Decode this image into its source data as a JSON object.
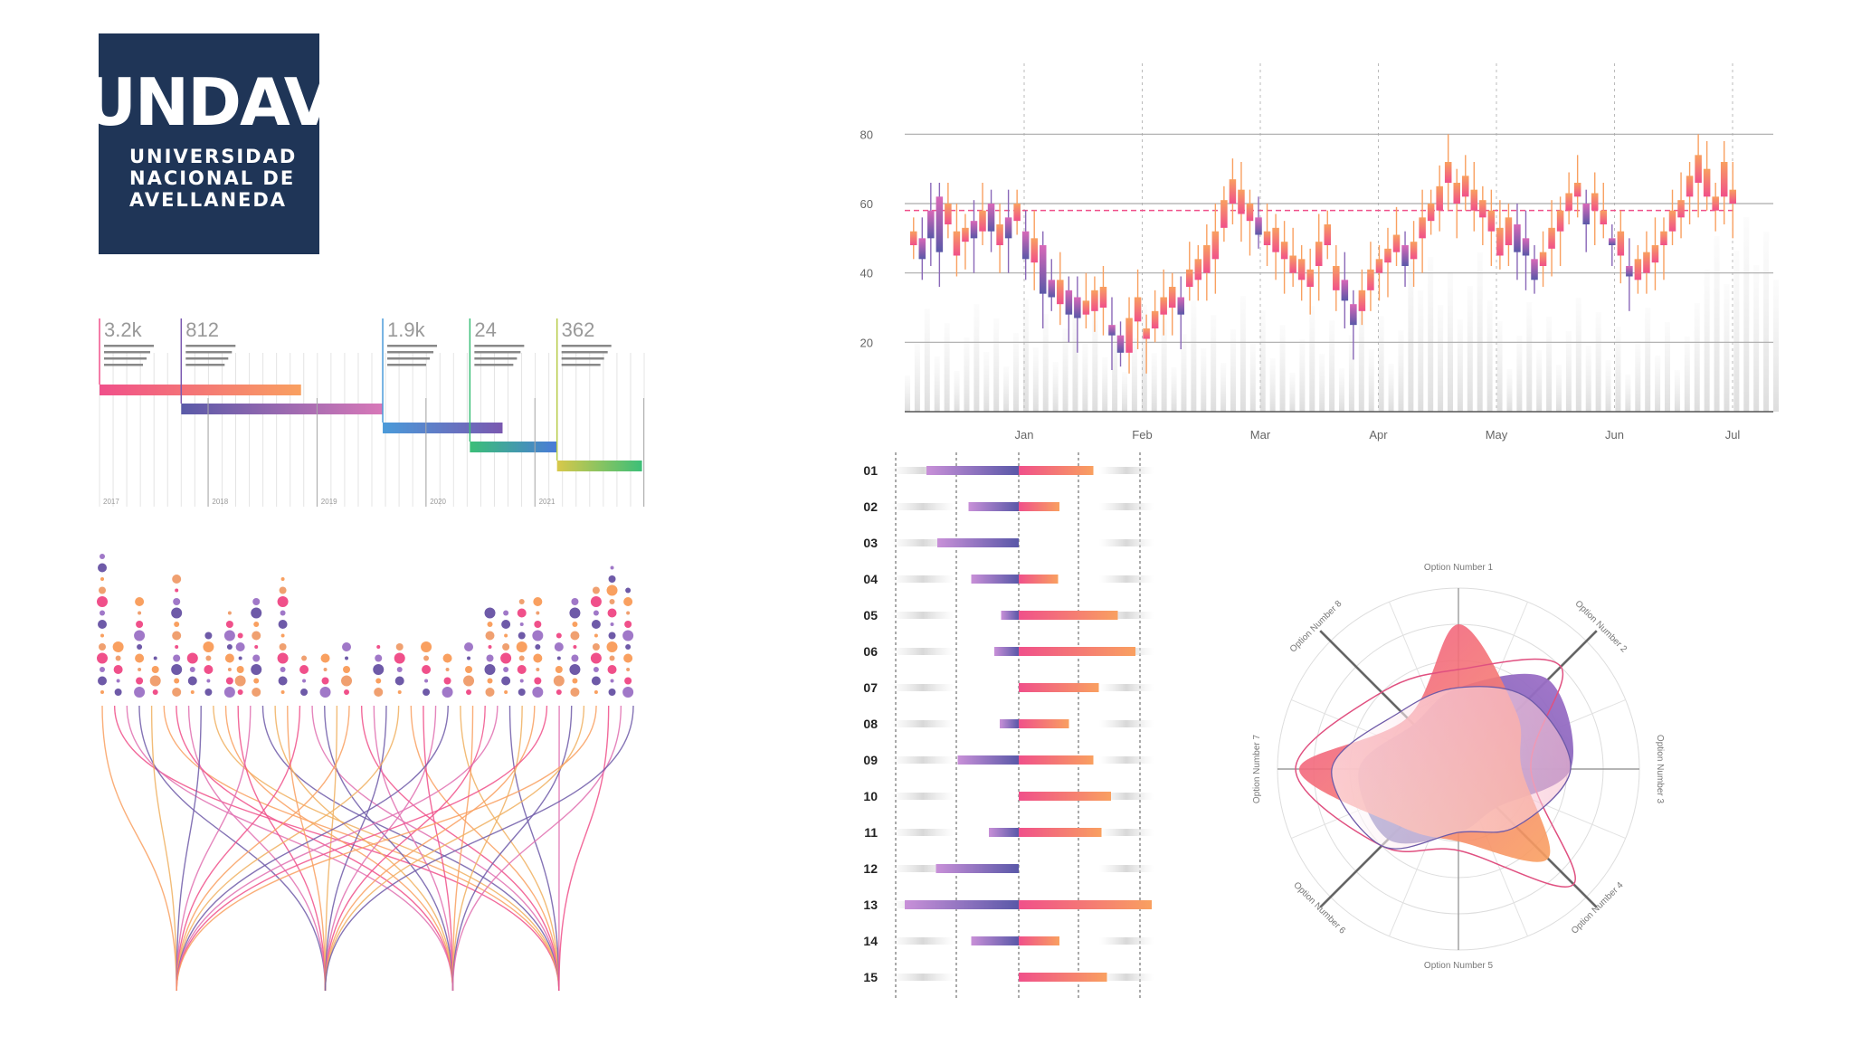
{
  "colors": {
    "navy": "#1f3557",
    "pink": "#f0508a",
    "orange": "#f9a060",
    "purple": "#6e5aa8",
    "blue": "#4a90d9",
    "green": "#3cbf78",
    "yellow": "#d8d84a",
    "grid": "#cccccc",
    "text": "#333333"
  },
  "logo": {
    "mark": "UNDAV",
    "line1": "UNIVERSIDAD",
    "line2": "NACIONAL DE",
    "line3": "AVELLANEDA"
  },
  "chart_data": [
    {
      "type": "bar",
      "subtype": "timeline-gantt",
      "title": "",
      "milestones": [
        {
          "value": "3.2k"
        },
        {
          "value": "812"
        },
        {
          "value": "1.9k"
        },
        {
          "value": "24"
        },
        {
          "value": "362"
        }
      ],
      "x_ticks": [
        "2017",
        "2018",
        "2019",
        "2020",
        "2021"
      ],
      "bars": [
        {
          "start": 2017.0,
          "end": 2018.85
        },
        {
          "start": 2017.75,
          "end": 2019.6
        },
        {
          "start": 2019.6,
          "end": 2020.7
        },
        {
          "start": 2020.4,
          "end": 2021.2
        },
        {
          "start": 2021.2,
          "end": 2021.98
        }
      ],
      "x_range": [
        2017.0,
        2022.0
      ]
    },
    {
      "type": "scatter",
      "subtype": "dot-columns-with-flow",
      "columns": [
        {
          "x": 0.0,
          "dots": 13
        },
        {
          "x": 0.03,
          "dots": 5
        },
        {
          "x": 0.07,
          "dots": 9
        },
        {
          "x": 0.1,
          "dots": 4
        },
        {
          "x": 0.14,
          "dots": 11
        },
        {
          "x": 0.17,
          "dots": 4
        },
        {
          "x": 0.2,
          "dots": 6
        },
        {
          "x": 0.24,
          "dots": 8
        },
        {
          "x": 0.26,
          "dots": 6
        },
        {
          "x": 0.29,
          "dots": 9
        },
        {
          "x": 0.34,
          "dots": 11
        },
        {
          "x": 0.38,
          "dots": 4
        },
        {
          "x": 0.42,
          "dots": 4
        },
        {
          "x": 0.46,
          "dots": 5
        },
        {
          "x": 0.52,
          "dots": 5
        },
        {
          "x": 0.56,
          "dots": 5
        },
        {
          "x": 0.61,
          "dots": 5
        },
        {
          "x": 0.65,
          "dots": 4
        },
        {
          "x": 0.69,
          "dots": 5
        },
        {
          "x": 0.73,
          "dots": 8
        },
        {
          "x": 0.76,
          "dots": 8
        },
        {
          "x": 0.79,
          "dots": 9
        },
        {
          "x": 0.82,
          "dots": 9
        },
        {
          "x": 0.86,
          "dots": 6
        },
        {
          "x": 0.89,
          "dots": 9
        },
        {
          "x": 0.93,
          "dots": 10
        },
        {
          "x": 0.96,
          "dots": 12
        },
        {
          "x": 0.99,
          "dots": 10
        }
      ],
      "flow_targets": [
        0.14,
        0.42,
        0.66,
        0.86
      ]
    },
    {
      "type": "line",
      "subtype": "candlestick",
      "title": "",
      "x_ticks": [
        "Jan",
        "Feb",
        "Mar",
        "Apr",
        "May",
        "Jun",
        "Jul"
      ],
      "y_ticks": [
        "80",
        "60",
        "40",
        "20"
      ],
      "ylim": [
        0,
        90
      ],
      "reference_line": 58,
      "candles": [
        [
          48,
          52
        ],
        [
          50,
          44
        ],
        [
          58,
          50
        ],
        [
          62,
          46
        ],
        [
          54,
          60
        ],
        [
          45,
          52
        ],
        [
          49,
          53
        ],
        [
          55,
          50
        ],
        [
          52,
          58
        ],
        [
          60,
          52
        ],
        [
          48,
          54
        ],
        [
          56,
          50
        ],
        [
          55,
          60
        ],
        [
          52,
          44
        ],
        [
          43,
          50
        ],
        [
          48,
          34
        ],
        [
          38,
          33
        ],
        [
          31,
          38
        ],
        [
          35,
          28
        ],
        [
          33,
          27
        ],
        [
          28,
          32
        ],
        [
          29,
          35
        ],
        [
          30,
          36
        ],
        [
          25,
          22
        ],
        [
          22,
          17
        ],
        [
          17,
          27
        ],
        [
          26,
          33
        ],
        [
          21,
          24
        ],
        [
          24,
          29
        ],
        [
          28,
          33
        ],
        [
          30,
          36
        ],
        [
          33,
          28
        ],
        [
          36,
          41
        ],
        [
          38,
          44
        ],
        [
          40,
          48
        ],
        [
          44,
          52
        ],
        [
          53,
          61
        ],
        [
          60,
          67
        ],
        [
          57,
          64
        ],
        [
          55,
          60
        ],
        [
          56,
          51
        ],
        [
          48,
          52
        ],
        [
          46,
          53
        ],
        [
          44,
          49
        ],
        [
          40,
          45
        ],
        [
          38,
          44
        ],
        [
          36,
          41
        ],
        [
          42,
          49
        ],
        [
          48,
          54
        ],
        [
          35,
          42
        ],
        [
          38,
          32
        ],
        [
          31,
          25
        ],
        [
          29,
          35
        ],
        [
          35,
          41
        ],
        [
          40,
          44
        ],
        [
          43,
          47
        ],
        [
          46,
          51
        ],
        [
          48,
          42
        ],
        [
          44,
          49
        ],
        [
          50,
          56
        ],
        [
          55,
          60
        ],
        [
          58,
          65
        ],
        [
          66,
          72
        ],
        [
          60,
          66
        ],
        [
          62,
          68
        ],
        [
          58,
          64
        ],
        [
          56,
          61
        ],
        [
          52,
          58
        ],
        [
          45,
          53
        ],
        [
          48,
          56
        ],
        [
          54,
          46
        ],
        [
          50,
          45
        ],
        [
          44,
          38
        ],
        [
          42,
          46
        ],
        [
          47,
          53
        ],
        [
          52,
          58
        ],
        [
          58,
          63
        ],
        [
          62,
          66
        ],
        [
          60,
          54
        ],
        [
          58,
          63
        ],
        [
          54,
          58
        ],
        [
          50,
          48
        ],
        [
          45,
          52
        ],
        [
          42,
          39
        ],
        [
          38,
          44
        ],
        [
          40,
          46
        ],
        [
          43,
          48
        ],
        [
          48,
          52
        ],
        [
          52,
          58
        ],
        [
          56,
          61
        ],
        [
          62,
          68
        ],
        [
          66,
          74
        ],
        [
          62,
          70
        ],
        [
          58,
          62
        ],
        [
          62,
          72
        ],
        [
          60,
          64
        ]
      ]
    },
    {
      "type": "bar",
      "subtype": "diverging",
      "categories": [
        "01",
        "02",
        "03",
        "04",
        "05",
        "06",
        "07",
        "08",
        "09",
        "10",
        "11",
        "12",
        "13",
        "14",
        "15"
      ],
      "left_values": [
        68,
        37,
        60,
        35,
        13,
        18,
        0,
        14,
        45,
        0,
        22,
        61,
        84,
        35,
        0
      ],
      "right_values": [
        55,
        30,
        0,
        29,
        73,
        86,
        59,
        37,
        55,
        68,
        61,
        0,
        98,
        30,
        65
      ],
      "xlim": [
        -100,
        100
      ]
    },
    {
      "type": "area",
      "subtype": "radar",
      "axis_labels": [
        "Option Number 1",
        "Option Number 2",
        "Option Number 3",
        "Option Number 4",
        "Option Number 5",
        "Option Number 6",
        "Option Number 7",
        "Option Number 8"
      ],
      "rings": 5,
      "series": [
        {
          "values": [
            0.8,
            0.45,
            0.35,
            0.7,
            0.4,
            0.45,
            0.88,
            0.4
          ]
        },
        {
          "values": [
            0.45,
            0.7,
            0.62,
            0.3,
            0.35,
            0.55,
            0.55,
            0.35
          ]
        },
        {
          "values": [
            0.55,
            0.8,
            0.4,
            0.9,
            0.45,
            0.6,
            0.9,
            0.6
          ]
        },
        {
          "values": [
            0.45,
            0.55,
            0.62,
            0.45,
            0.35,
            0.6,
            0.7,
            0.45
          ]
        }
      ]
    }
  ]
}
